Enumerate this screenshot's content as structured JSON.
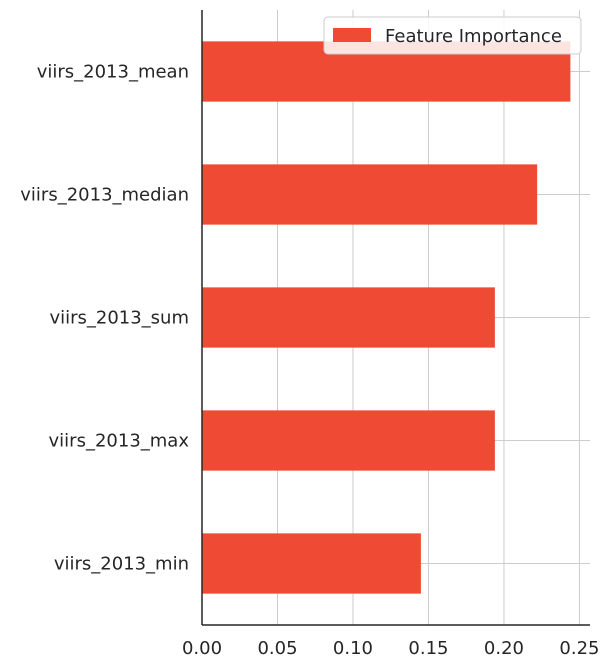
{
  "chart_data": {
    "type": "bar",
    "orientation": "horizontal",
    "categories": [
      "viirs_2013_mean",
      "viirs_2013_median",
      "viirs_2013_sum",
      "viirs_2013_max",
      "viirs_2013_min"
    ],
    "series": [
      {
        "name": "Feature Importance",
        "values": [
          0.244,
          0.222,
          0.194,
          0.194,
          0.145
        ],
        "color": "#ee4a34"
      }
    ],
    "title": "",
    "xlabel": "",
    "ylabel": "",
    "xlim": [
      0.0,
      0.257
    ],
    "xticks": [
      "0.00",
      "0.05",
      "0.10",
      "0.15",
      "0.20",
      "0.25"
    ],
    "xtick_values": [
      0.0,
      0.05,
      0.1,
      0.15,
      0.2,
      0.25
    ],
    "grid": true,
    "legend_position": "top-right",
    "colors": {
      "bar": "#ee4a34",
      "grid": "#cccccc",
      "axis": "#262626"
    }
  }
}
